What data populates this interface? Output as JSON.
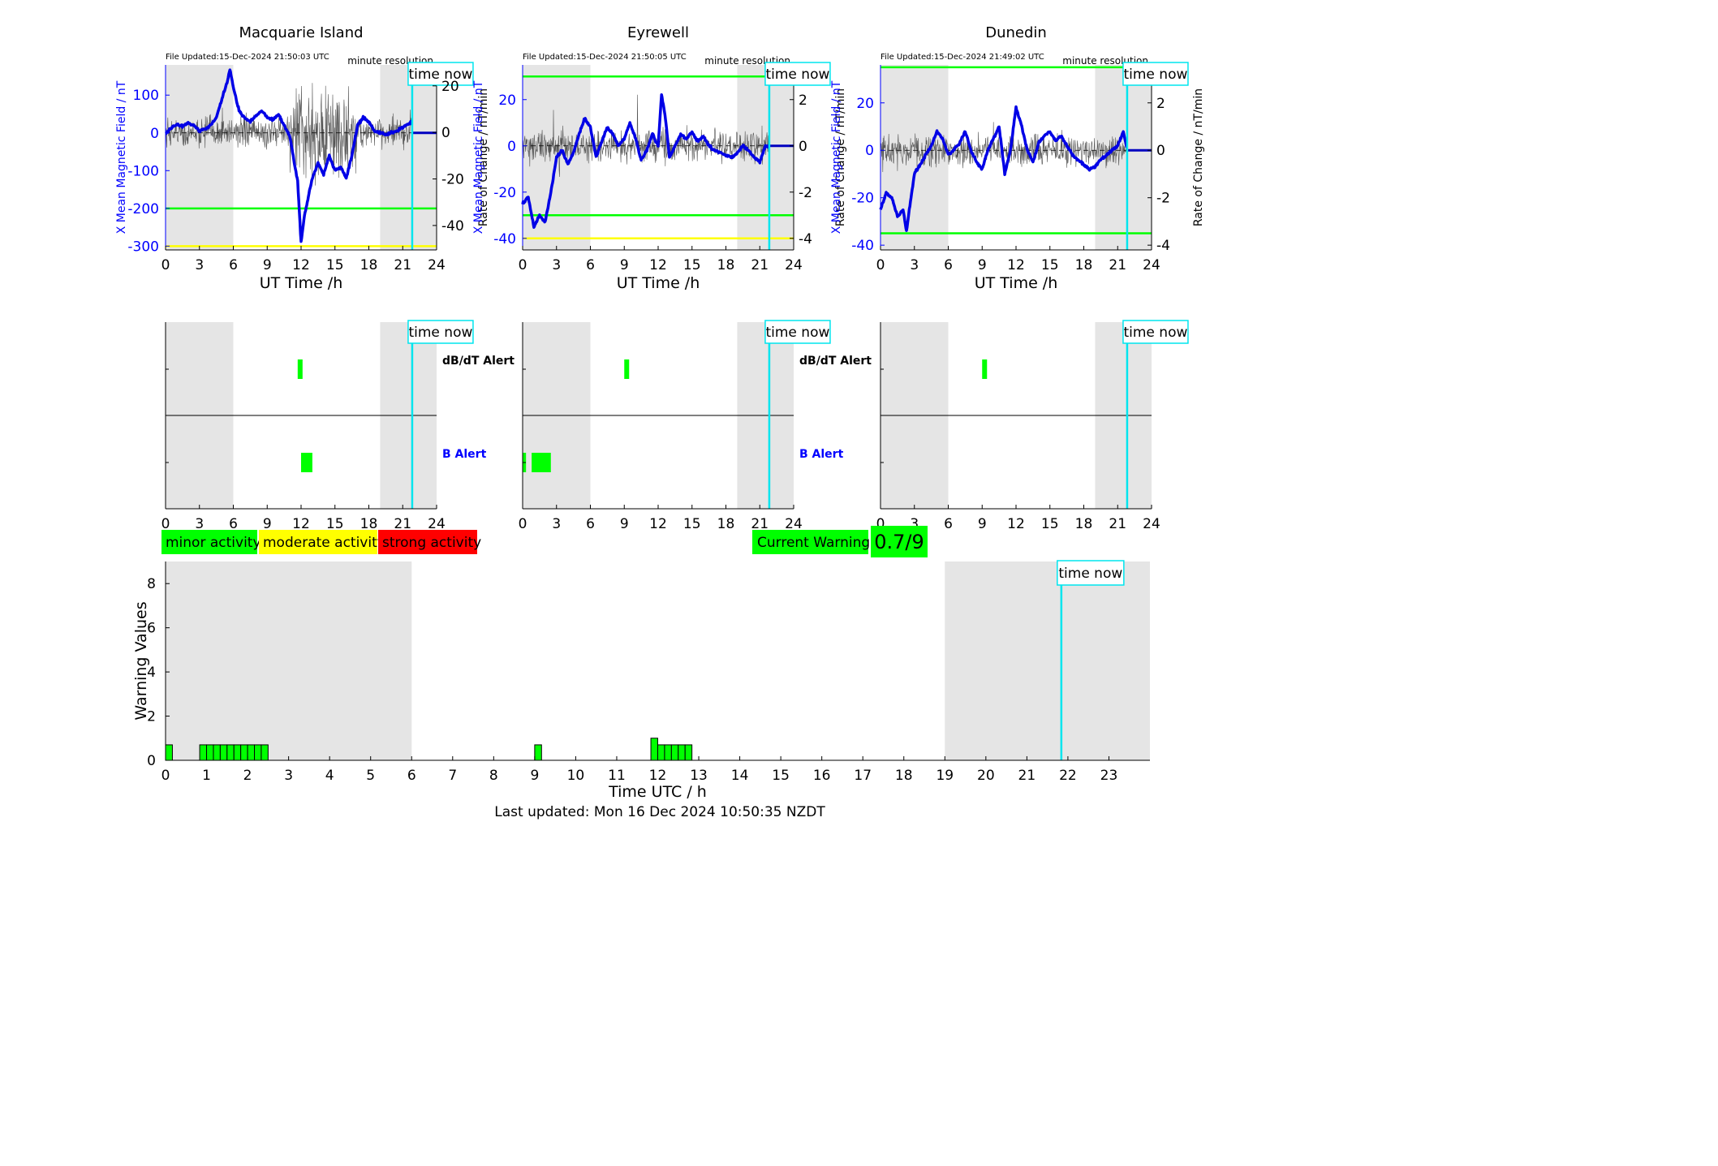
{
  "stations": [
    {
      "name": "Macquarie Island",
      "file_updated": "File Updated:15-Dec-2024 21:50:03 UTC",
      "resolution": "minute resolution",
      "left_ylabel": "X Mean Magnetic Field / nT",
      "right_ylabel": "Rate of Change / nT/min",
      "left_ylim": [
        -310,
        180
      ],
      "left_ticks": [
        100,
        0,
        -100,
        -200,
        -300
      ],
      "right_ylim": [
        -50.5,
        29
      ],
      "right_ticks": [
        20,
        0,
        -20,
        -40
      ],
      "thresholds": [
        {
          "value": -200,
          "color": "#00ff00"
        },
        {
          "value": -300,
          "color": "#ffff00"
        }
      ],
      "b_alert_bars": [
        [
          12.0,
          13.0
        ]
      ],
      "dbdt_alert_bars": [
        [
          11.7,
          12.0
        ]
      ]
    },
    {
      "name": "Eyrewell",
      "file_updated": "File Updated:15-Dec-2024 21:50:05 UTC",
      "resolution": "minute resolution",
      "left_ylabel": "X Mean Magnetic Field / nT",
      "right_ylabel": "Rate of Change / nT/min",
      "left_ylim": [
        -45,
        35
      ],
      "left_ticks": [
        20,
        0,
        -20,
        -40
      ],
      "right_ylim": [
        -4.5,
        3.5
      ],
      "right_ticks": [
        2,
        0,
        -2,
        -4
      ],
      "thresholds": [
        {
          "value": 30,
          "color": "#00ff00"
        },
        {
          "value": -30,
          "color": "#00ff00"
        },
        {
          "value": -40,
          "color": "#ffff00"
        }
      ],
      "b_alert_bars": [
        [
          0.0,
          0.3
        ],
        [
          0.8,
          2.5
        ]
      ],
      "dbdt_alert_bars": [
        [
          9.0,
          9.3
        ]
      ]
    },
    {
      "name": "Dunedin",
      "file_updated": "File Updated:15-Dec-2024 21:49:02 UTC",
      "resolution": "minute resolution",
      "left_ylabel": "X Mean Magnetic Field / nT",
      "right_ylabel": "Rate of Change / nT/min",
      "left_ylim": [
        -42,
        36
      ],
      "left_ticks": [
        20,
        0,
        -20,
        -40
      ],
      "right_ylim": [
        -4.2,
        3.6
      ],
      "right_ticks": [
        2,
        0,
        -2,
        -4
      ],
      "thresholds": [
        {
          "value": 35,
          "color": "#00ff00"
        },
        {
          "value": -35,
          "color": "#00ff00"
        }
      ],
      "b_alert_bars": [],
      "dbdt_alert_bars": [
        [
          9.0,
          9.3
        ]
      ]
    }
  ],
  "top_xlabel": "UT Time /h",
  "top_xticks": [
    0,
    3,
    6,
    9,
    12,
    15,
    18,
    21,
    24
  ],
  "time_now_label": "time now",
  "time_now_hour": 21.84,
  "night_shading": [
    [
      0,
      6
    ],
    [
      19,
      24
    ]
  ],
  "alert_labels": {
    "dbdt": "dB/dT Alert",
    "b": "B Alert"
  },
  "legend": [
    {
      "label": "minor activity",
      "color": "#00ff00"
    },
    {
      "label": "moderate activity",
      "color": "#ffff00"
    },
    {
      "label": "strong activity",
      "color": "#ff0000"
    }
  ],
  "current_warning": {
    "label": "Current Warning:",
    "value": "0.7/9",
    "color": "#00ff00"
  },
  "chart_data": {
    "type": "bar",
    "xlabel": "Time UTC / h",
    "ylabel": "Warning Values",
    "xlim": [
      0,
      24
    ],
    "ylim": [
      0,
      9
    ],
    "xticks": [
      0,
      1,
      2,
      3,
      4,
      5,
      6,
      7,
      8,
      9,
      10,
      11,
      12,
      13,
      14,
      15,
      16,
      17,
      18,
      19,
      20,
      21,
      22,
      23
    ],
    "yticks": [
      0,
      2,
      4,
      6,
      8
    ],
    "bar_width_h": 0.1667,
    "bars": [
      {
        "t": 0.0,
        "v": 0.7
      },
      {
        "t": 0.833,
        "v": 0.7
      },
      {
        "t": 1.0,
        "v": 0.7
      },
      {
        "t": 1.167,
        "v": 0.7
      },
      {
        "t": 1.333,
        "v": 0.7
      },
      {
        "t": 1.5,
        "v": 0.7
      },
      {
        "t": 1.667,
        "v": 0.7
      },
      {
        "t": 1.833,
        "v": 0.7
      },
      {
        "t": 2.0,
        "v": 0.7
      },
      {
        "t": 2.167,
        "v": 0.7
      },
      {
        "t": 2.333,
        "v": 0.7
      },
      {
        "t": 9.0,
        "v": 0.7
      },
      {
        "t": 11.833,
        "v": 1.0
      },
      {
        "t": 12.0,
        "v": 0.7
      },
      {
        "t": 12.167,
        "v": 0.7
      },
      {
        "t": 12.333,
        "v": 0.7
      },
      {
        "t": 12.5,
        "v": 0.7
      },
      {
        "t": 12.667,
        "v": 0.7
      }
    ]
  },
  "last_updated": "Last updated: Mon 16 Dec 2024 10:50:35 NZDT"
}
